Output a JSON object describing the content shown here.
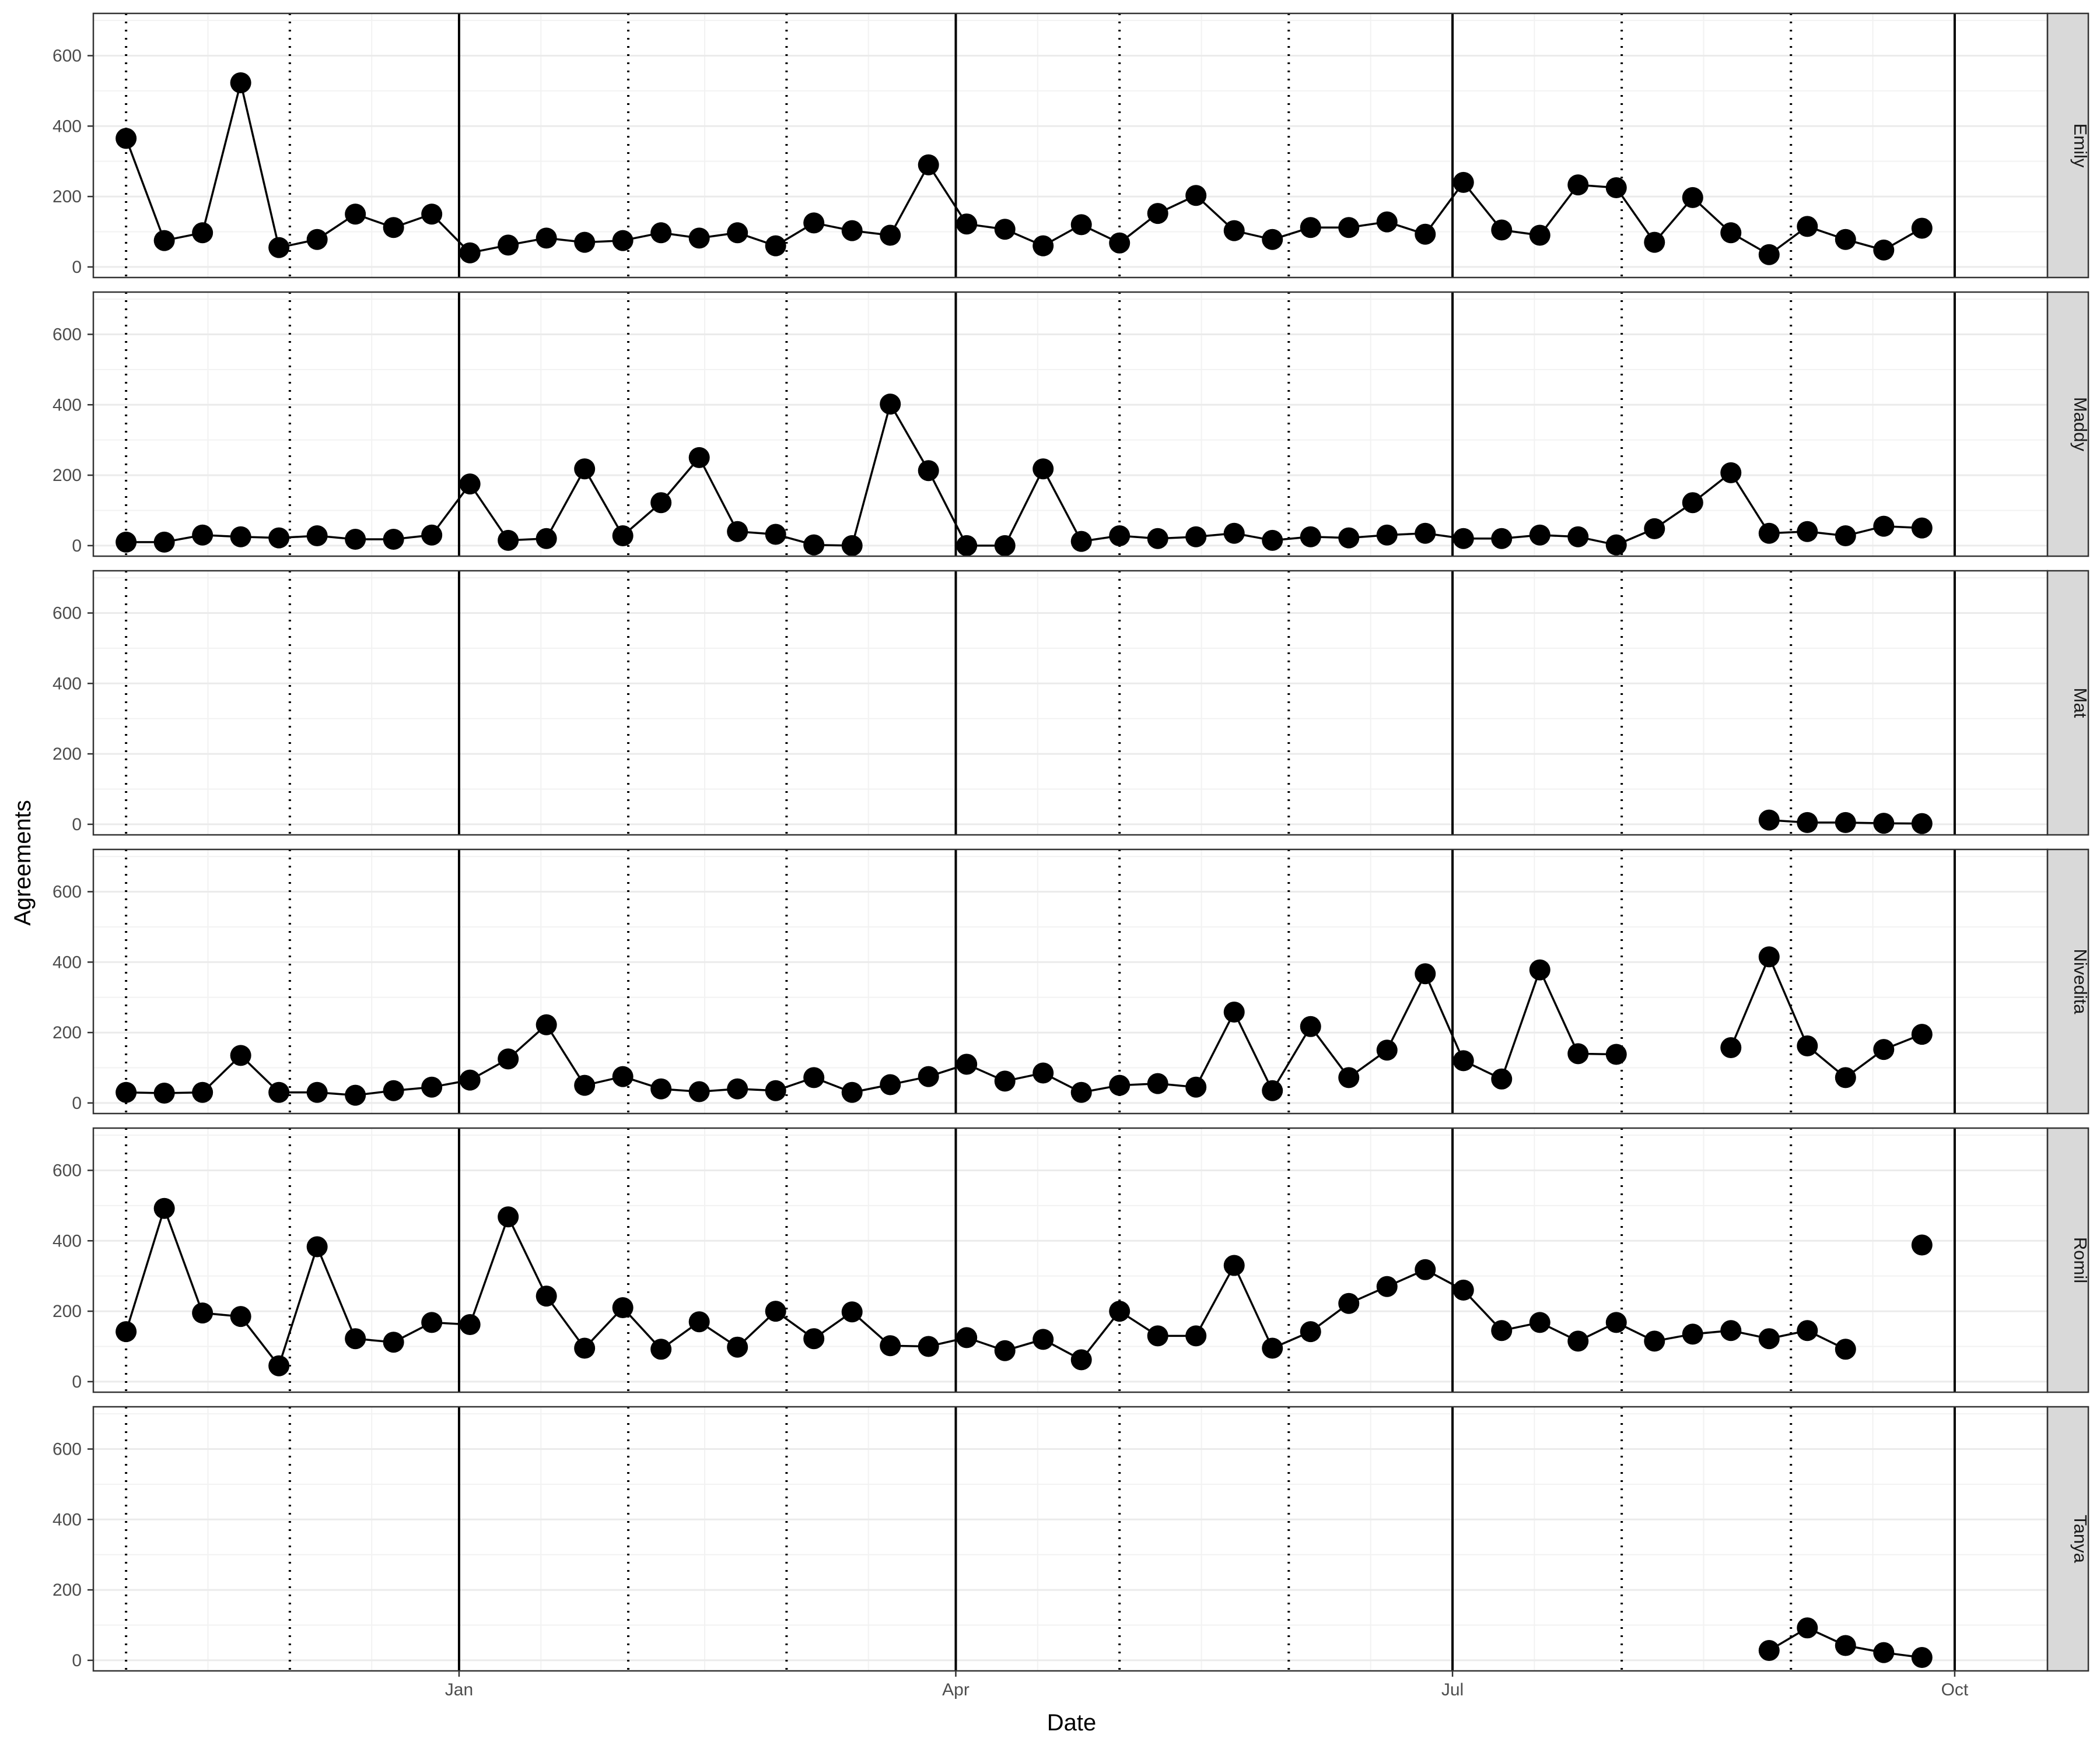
{
  "chart_data": {
    "type": "scatter",
    "facet_layout": "rows",
    "xlabel": "Date",
    "ylabel": "Agreements",
    "x_range": [
      "2023-10-26",
      "2024-10-18"
    ],
    "x_ticks": [
      {
        "date": "2024-01-01",
        "label": "Jan"
      },
      {
        "date": "2024-04-01",
        "label": "Apr"
      },
      {
        "date": "2024-07-01",
        "label": "Jul"
      },
      {
        "date": "2024-10-01",
        "label": "Oct"
      }
    ],
    "ylim": [
      -30,
      720
    ],
    "y_ticks": [
      0,
      200,
      400,
      600
    ],
    "grid": true,
    "reference_lines": {
      "solid": [
        "2024-01-01",
        "2024-04-01",
        "2024-07-01",
        "2024-10-01"
      ],
      "dotted": [
        "2023-11-01",
        "2023-12-01",
        "2024-02-01",
        "2024-03-01",
        "2024-05-01",
        "2024-06-01",
        "2024-08-01",
        "2024-09-01"
      ]
    },
    "colors": {
      "line": "#000000",
      "point": "#000000",
      "grid": "#ebebeb",
      "strip_fill": "#d9d9d9",
      "panel_border": "#333333"
    },
    "series": [
      {
        "name": "Emily",
        "points": [
          [
            "2023-11-01",
            365
          ],
          [
            "2023-11-08",
            75
          ],
          [
            "2023-11-15",
            97
          ],
          [
            "2023-11-22",
            523
          ],
          [
            "2023-11-29",
            55
          ],
          [
            "2023-12-06",
            78
          ],
          [
            "2023-12-13",
            150
          ],
          [
            "2023-12-20",
            112
          ],
          [
            "2023-12-27",
            150
          ],
          [
            "2024-01-03",
            40
          ],
          [
            "2024-01-10",
            62
          ],
          [
            "2024-01-17",
            82
          ],
          [
            "2024-01-24",
            70
          ],
          [
            "2024-01-31",
            75
          ],
          [
            "2024-02-07",
            97
          ],
          [
            "2024-02-14",
            82
          ],
          [
            "2024-02-21",
            97
          ],
          [
            "2024-02-28",
            60
          ],
          [
            "2024-03-06",
            125
          ],
          [
            "2024-03-13",
            103
          ],
          [
            "2024-03-20",
            90
          ],
          [
            "2024-03-27",
            290
          ],
          [
            "2024-04-03",
            122
          ],
          [
            "2024-04-10",
            107
          ],
          [
            "2024-04-17",
            60
          ],
          [
            "2024-04-24",
            120
          ],
          [
            "2024-05-01",
            68
          ],
          [
            "2024-05-08",
            152
          ],
          [
            "2024-05-15",
            203
          ],
          [
            "2024-05-22",
            103
          ],
          [
            "2024-05-29",
            78
          ],
          [
            "2024-06-05",
            112
          ],
          [
            "2024-06-12",
            112
          ],
          [
            "2024-06-19",
            128
          ],
          [
            "2024-06-26",
            93
          ],
          [
            "2024-07-03",
            240
          ],
          [
            "2024-07-10",
            105
          ],
          [
            "2024-07-17",
            90
          ],
          [
            "2024-07-24",
            233
          ],
          [
            "2024-07-31",
            225
          ],
          [
            "2024-08-07",
            70
          ],
          [
            "2024-08-14",
            197
          ],
          [
            "2024-08-21",
            97
          ],
          [
            "2024-08-28",
            35
          ],
          [
            "2024-09-04",
            115
          ],
          [
            "2024-09-11",
            78
          ],
          [
            "2024-09-18",
            48
          ],
          [
            "2024-09-25",
            110
          ]
        ]
      },
      {
        "name": "Maddy",
        "points": [
          [
            "2023-11-01",
            10
          ],
          [
            "2023-11-08",
            10
          ],
          [
            "2023-11-15",
            30
          ],
          [
            "2023-11-22",
            25
          ],
          [
            "2023-11-29",
            22
          ],
          [
            "2023-12-06",
            28
          ],
          [
            "2023-12-13",
            18
          ],
          [
            "2023-12-20",
            18
          ],
          [
            "2023-12-27",
            30
          ],
          [
            "2024-01-03",
            175
          ],
          [
            "2024-01-10",
            15
          ],
          [
            "2024-01-17",
            20
          ],
          [
            "2024-01-24",
            218
          ],
          [
            "2024-01-31",
            28
          ],
          [
            "2024-02-07",
            122
          ],
          [
            "2024-02-14",
            250
          ],
          [
            "2024-02-21",
            40
          ],
          [
            "2024-02-28",
            32
          ],
          [
            "2024-03-06",
            2
          ],
          [
            "2024-03-13",
            0
          ],
          [
            "2024-03-20",
            402
          ],
          [
            "2024-03-27",
            213
          ],
          [
            "2024-04-03",
            0
          ],
          [
            "2024-04-10",
            0
          ],
          [
            "2024-04-17",
            218
          ],
          [
            "2024-04-24",
            12
          ],
          [
            "2024-05-01",
            28
          ],
          [
            "2024-05-08",
            20
          ],
          [
            "2024-05-15",
            25
          ],
          [
            "2024-05-22",
            35
          ],
          [
            "2024-05-29",
            15
          ],
          [
            "2024-06-05",
            25
          ],
          [
            "2024-06-12",
            22
          ],
          [
            "2024-06-19",
            30
          ],
          [
            "2024-06-26",
            35
          ],
          [
            "2024-07-03",
            20
          ],
          [
            "2024-07-10",
            20
          ],
          [
            "2024-07-17",
            30
          ],
          [
            "2024-07-24",
            25
          ],
          [
            "2024-07-31",
            2
          ],
          [
            "2024-08-07",
            48
          ],
          [
            "2024-08-14",
            122
          ],
          [
            "2024-08-21",
            207
          ],
          [
            "2024-08-28",
            35
          ],
          [
            "2024-09-04",
            40
          ],
          [
            "2024-09-11",
            28
          ],
          [
            "2024-09-18",
            55
          ],
          [
            "2024-09-25",
            50
          ]
        ]
      },
      {
        "name": "Mat",
        "points": [
          [
            "2024-08-28",
            12
          ],
          [
            "2024-09-04",
            5
          ],
          [
            "2024-09-11",
            5
          ],
          [
            "2024-09-18",
            3
          ],
          [
            "2024-09-25",
            2
          ]
        ]
      },
      {
        "name": "Nivedita",
        "points": [
          [
            "2023-11-01",
            30
          ],
          [
            "2023-11-08",
            28
          ],
          [
            "2023-11-15",
            30
          ],
          [
            "2023-11-22",
            135
          ],
          [
            "2023-11-29",
            30
          ],
          [
            "2023-12-06",
            30
          ],
          [
            "2023-12-13",
            22
          ],
          [
            "2023-12-20",
            35
          ],
          [
            "2023-12-27",
            45
          ],
          [
            "2024-01-03",
            65
          ],
          [
            "2024-01-10",
            125
          ],
          [
            "2024-01-17",
            222
          ],
          [
            "2024-01-24",
            50
          ],
          [
            "2024-01-31",
            75
          ],
          [
            "2024-02-07",
            40
          ],
          [
            "2024-02-14",
            32
          ],
          [
            "2024-02-21",
            40
          ],
          [
            "2024-02-28",
            35
          ],
          [
            "2024-03-06",
            72
          ],
          [
            "2024-03-13",
            30
          ],
          [
            "2024-03-20",
            52
          ],
          [
            "2024-03-27",
            75
          ],
          [
            "2024-04-03",
            110
          ],
          [
            "2024-04-10",
            62
          ],
          [
            "2024-04-17",
            85
          ],
          [
            "2024-04-24",
            30
          ],
          [
            "2024-05-01",
            50
          ],
          [
            "2024-05-08",
            55
          ],
          [
            "2024-05-15",
            45
          ],
          [
            "2024-05-22",
            258
          ],
          [
            "2024-05-29",
            35
          ],
          [
            "2024-06-05",
            217
          ],
          [
            "2024-06-12",
            72
          ],
          [
            "2024-06-19",
            150
          ],
          [
            "2024-06-26",
            367
          ],
          [
            "2024-07-03",
            120
          ],
          [
            "2024-07-10",
            68
          ],
          [
            "2024-07-17",
            378
          ],
          [
            "2024-07-24",
            140
          ],
          [
            "2024-07-31",
            138
          ],
          [
            "2024-08-21",
            157
          ],
          [
            "2024-08-28",
            415
          ],
          [
            "2024-09-04",
            162
          ],
          [
            "2024-09-11",
            72
          ],
          [
            "2024-09-18",
            152
          ],
          [
            "2024-09-25",
            195
          ]
        ]
      },
      {
        "name": "Romil",
        "points": [
          [
            "2023-11-01",
            142
          ],
          [
            "2023-11-08",
            492
          ],
          [
            "2023-11-15",
            195
          ],
          [
            "2023-11-22",
            185
          ],
          [
            "2023-11-29",
            45
          ],
          [
            "2023-12-06",
            383
          ],
          [
            "2023-12-13",
            122
          ],
          [
            "2023-12-20",
            112
          ],
          [
            "2023-12-27",
            168
          ],
          [
            "2024-01-03",
            162
          ],
          [
            "2024-01-10",
            468
          ],
          [
            "2024-01-17",
            243
          ],
          [
            "2024-01-24",
            95
          ],
          [
            "2024-01-31",
            210
          ],
          [
            "2024-02-07",
            92
          ],
          [
            "2024-02-14",
            170
          ],
          [
            "2024-02-21",
            98
          ],
          [
            "2024-02-28",
            200
          ],
          [
            "2024-03-06",
            122
          ],
          [
            "2024-03-13",
            198
          ],
          [
            "2024-03-20",
            102
          ],
          [
            "2024-03-27",
            100
          ],
          [
            "2024-04-03",
            125
          ],
          [
            "2024-04-10",
            88
          ],
          [
            "2024-04-17",
            120
          ],
          [
            "2024-04-24",
            62
          ],
          [
            "2024-05-01",
            200
          ],
          [
            "2024-05-08",
            130
          ],
          [
            "2024-05-15",
            130
          ],
          [
            "2024-05-22",
            330
          ],
          [
            "2024-05-29",
            95
          ],
          [
            "2024-06-05",
            142
          ],
          [
            "2024-06-12",
            222
          ],
          [
            "2024-06-19",
            270
          ],
          [
            "2024-06-26",
            318
          ],
          [
            "2024-07-03",
            260
          ],
          [
            "2024-07-10",
            145
          ],
          [
            "2024-07-17",
            168
          ],
          [
            "2024-07-24",
            115
          ],
          [
            "2024-07-31",
            168
          ],
          [
            "2024-08-07",
            115
          ],
          [
            "2024-08-14",
            135
          ],
          [
            "2024-08-21",
            145
          ],
          [
            "2024-08-28",
            122
          ],
          [
            "2024-09-04",
            145
          ],
          [
            "2024-09-11",
            92
          ],
          [
            "2024-09-25",
            388,
            "isolated"
          ]
        ]
      },
      {
        "name": "Tanya",
        "points": [
          [
            "2024-08-28",
            28
          ],
          [
            "2024-09-04",
            92
          ],
          [
            "2024-09-11",
            42
          ],
          [
            "2024-09-18",
            22
          ],
          [
            "2024-09-25",
            8
          ]
        ]
      }
    ]
  }
}
